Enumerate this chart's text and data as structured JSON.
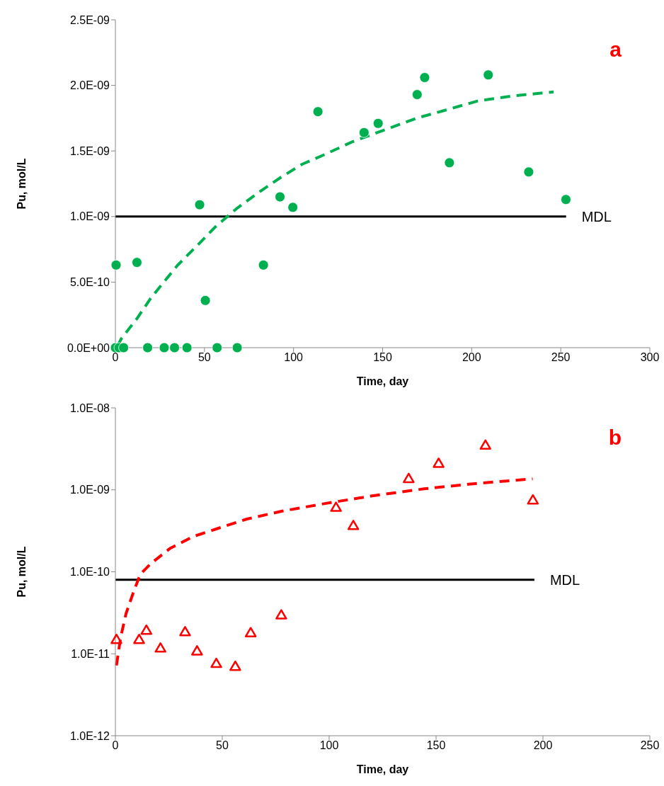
{
  "chart_data": [
    {
      "type": "scatter",
      "xlabel": "Time, day",
      "ylabel": "Pu, mol/L",
      "annotations": [
        "a"
      ],
      "xlim": [
        0,
        300
      ],
      "xticks": [
        0,
        50,
        100,
        150,
        200,
        250,
        300
      ],
      "ylim": [
        0,
        2.5e-09
      ],
      "yticks": [
        {
          "value": 0,
          "label": "0.0E+00"
        },
        {
          "value": 5e-10,
          "label": "5.0E-10"
        },
        {
          "value": 1e-09,
          "label": "1.0E-09"
        },
        {
          "value": 1.5e-09,
          "label": "1.5E-09"
        },
        {
          "value": 2e-09,
          "label": "2.0E-09"
        },
        {
          "value": 2.5e-09,
          "label": "2.5E-09"
        }
      ],
      "series": [
        {
          "type": "line",
          "name": "MDL",
          "color": "#000000",
          "line_style": "solid",
          "marker": "none",
          "x": [
            0,
            253
          ],
          "values": [
            1e-09,
            1e-09
          ]
        },
        {
          "type": "line",
          "color": "#00b050",
          "line_style": "dashed",
          "marker": "none",
          "x": [
            1,
            3.4,
            12,
            20,
            26,
            35,
            46,
            56,
            68,
            80,
            93,
            105,
            117,
            133,
            149,
            169,
            185,
            203,
            223,
            246
          ],
          "values": [
            1e-11,
            7e-11,
            2.2e-10,
            3.8e-10,
            4.8e-10,
            6.3e-10,
            7.8e-10,
            9.2e-10,
            1.06e-09,
            1.18e-09,
            1.3e-09,
            1.4e-09,
            1.47e-09,
            1.57e-09,
            1.65e-09,
            1.75e-09,
            1.81e-09,
            1.88e-09,
            1.92e-09,
            1.95e-09
          ]
        },
        {
          "color": "#00b050",
          "marker": "circle",
          "x": [
            0,
            2,
            4.6,
            18.1,
            27.4,
            33.2,
            40.2,
            57.1,
            68.4,
            0.4,
            12.1,
            47.3,
            50.5,
            83.1,
            92.4,
            99.6,
            113.7,
            139.6,
            147.5,
            169.4,
            173.6,
            187.5,
            209.3,
            232,
            252.9
          ],
          "values": [
            0,
            0,
            0,
            0,
            0,
            0,
            0,
            0,
            0,
            6.3e-10,
            6.5e-10,
            1.09e-09,
            3.6e-10,
            6.3e-10,
            1.15e-09,
            1.07e-09,
            1.8e-09,
            1.64e-09,
            1.71e-09,
            1.93e-09,
            2.06e-09,
            1.41e-09,
            2.08e-09,
            1.34e-09,
            1.13e-09
          ]
        }
      ]
    },
    {
      "type": "scatter",
      "xlabel": "Time, day",
      "ylabel": "Pu, mol/L",
      "annotations": [
        "b"
      ],
      "log": "y",
      "xlim": [
        0,
        250
      ],
      "xticks": [
        0,
        50,
        100,
        150,
        200,
        250
      ],
      "ylim": [
        1e-12,
        1e-08
      ],
      "yticks": [
        {
          "value": 1e-12,
          "label": "1.0E-12"
        },
        {
          "value": 1e-11,
          "label": "1.0E-11"
        },
        {
          "value": 1e-10,
          "label": "1.0E-10"
        },
        {
          "value": 1e-09,
          "label": "1.0E-09"
        },
        {
          "value": 1e-08,
          "label": "1.0E-08"
        }
      ],
      "series": [
        {
          "type": "line",
          "name": "MDL",
          "color": "#000000",
          "line_style": "solid",
          "marker": "none",
          "x": [
            0,
            196
          ],
          "values": [
            8e-11,
            8e-11
          ]
        },
        {
          "type": "line",
          "color": "#ff0000",
          "line_style": "dashed",
          "marker": "none",
          "x": [
            0.5,
            2.5,
            5,
            8.3,
            11.6,
            16.6,
            25.7,
            36.5,
            48.2,
            61.5,
            78,
            98,
            119.6,
            144.5,
            169.4,
            195.2
          ],
          "values": [
            7.2e-12,
            1.6e-11,
            3.1e-11,
            5.5e-11,
            9.3e-11,
            1.26e-10,
            1.94e-10,
            2.7e-10,
            3.4e-10,
            4.4e-10,
            5.5e-10,
            6.8e-10,
            8.4e-10,
            1.03e-09,
            1.2e-09,
            1.36e-09
          ]
        },
        {
          "color": "#ff0000",
          "marker": "triangle",
          "x": [
            0.5,
            11.1,
            14.5,
            21.1,
            32.6,
            38.2,
            47.2,
            56.1,
            63.3,
            77.6,
            103.2,
            111.3,
            137.2,
            151.2,
            173.1,
            195.3
          ],
          "values": [
            1.49e-11,
            1.49e-11,
            1.93e-11,
            1.17e-11,
            1.85e-11,
            1.08e-11,
            7.6e-12,
            7e-12,
            1.8e-11,
            2.97e-11,
            6.1e-10,
            3.66e-10,
            1.37e-09,
            2.1e-09,
            3.5e-09,
            7.5e-10
          ]
        }
      ]
    }
  ]
}
